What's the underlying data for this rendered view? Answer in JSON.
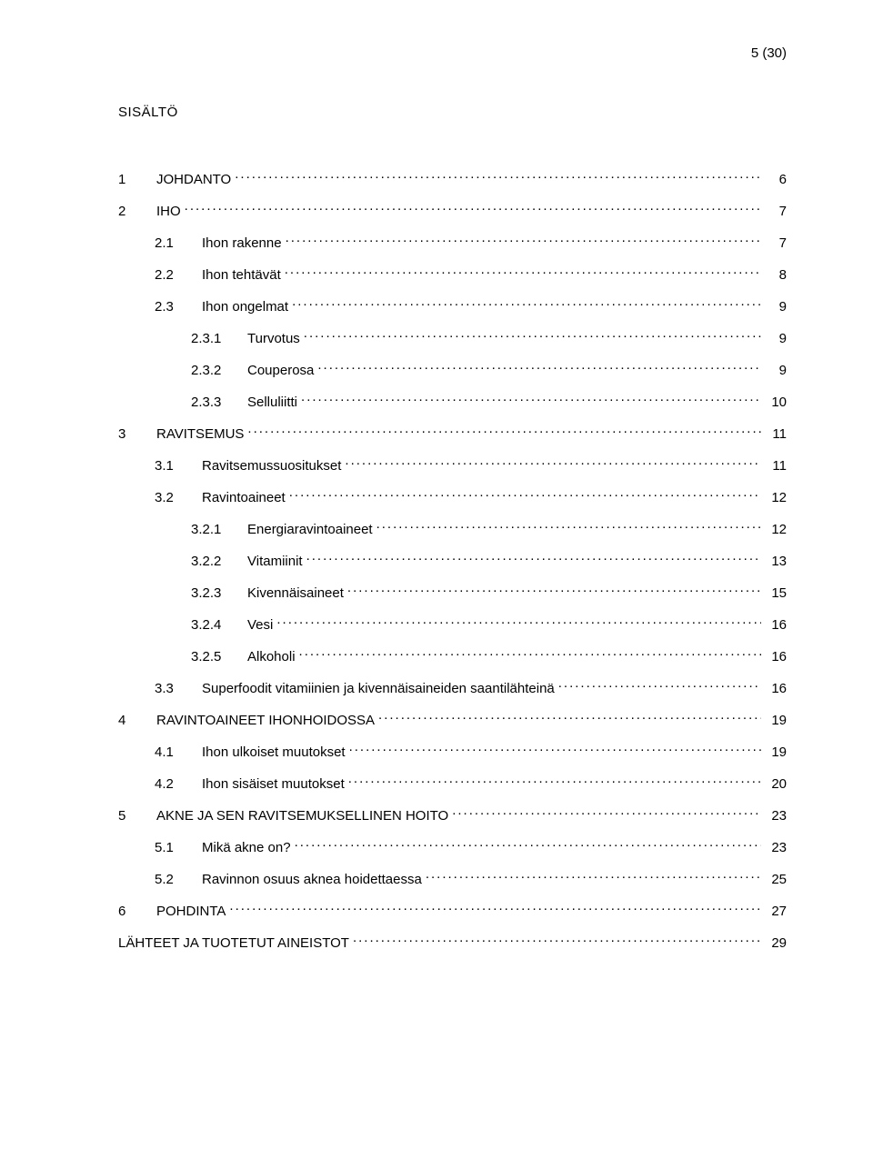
{
  "page_indicator": "5 (30)",
  "heading": "SISÄLTÖ",
  "background_color": "#ffffff",
  "text_color": "#000000",
  "font_family": "Verdana, Tahoma, Geneva, sans-serif",
  "body_font_size_pt": 11,
  "entries": [
    {
      "level": 0,
      "num": "1",
      "title": "JOHDANTO",
      "page": "6"
    },
    {
      "level": 0,
      "num": "2",
      "title": "IHO",
      "page": "7"
    },
    {
      "level": 1,
      "num": "2.1",
      "title": "Ihon rakenne",
      "page": "7"
    },
    {
      "level": 1,
      "num": "2.2",
      "title": "Ihon tehtävät",
      "page": "8"
    },
    {
      "level": 1,
      "num": "2.3",
      "title": "Ihon ongelmat",
      "page": "9"
    },
    {
      "level": 2,
      "num": "2.3.1",
      "title": "Turvotus",
      "page": "9"
    },
    {
      "level": 2,
      "num": "2.3.2",
      "title": "Couperosa",
      "page": "9"
    },
    {
      "level": 2,
      "num": "2.3.3",
      "title": "Selluliitti",
      "page": "10"
    },
    {
      "level": 0,
      "num": "3",
      "title": "RAVITSEMUS",
      "page": "11"
    },
    {
      "level": 1,
      "num": "3.1",
      "title": "Ravitsemussuositukset",
      "page": "11"
    },
    {
      "level": 1,
      "num": "3.2",
      "title": "Ravintoaineet",
      "page": "12"
    },
    {
      "level": 2,
      "num": "3.2.1",
      "title": "Energiaravintoaineet",
      "page": "12"
    },
    {
      "level": 2,
      "num": "3.2.2",
      "title": "Vitamiinit",
      "page": "13"
    },
    {
      "level": 2,
      "num": "3.2.3",
      "title": "Kivennäisaineet",
      "page": "15"
    },
    {
      "level": 2,
      "num": "3.2.4",
      "title": "Vesi",
      "page": "16"
    },
    {
      "level": 2,
      "num": "3.2.5",
      "title": "Alkoholi",
      "page": "16"
    },
    {
      "level": 1,
      "num": "3.3",
      "title": "Superfoodit vitamiinien ja kivennäisaineiden saantilähteinä",
      "page": "16"
    },
    {
      "level": 0,
      "num": "4",
      "title": "RAVINTOAINEET IHONHOIDOSSA",
      "page": "19"
    },
    {
      "level": 1,
      "num": "4.1",
      "title": "Ihon ulkoiset muutokset",
      "page": "19"
    },
    {
      "level": 1,
      "num": "4.2",
      "title": "Ihon sisäiset muutokset",
      "page": "20"
    },
    {
      "level": 0,
      "num": "5",
      "title": "AKNE JA SEN RAVITSEMUKSELLINEN HOITO",
      "page": "23"
    },
    {
      "level": 1,
      "num": "5.1",
      "title": "Mikä akne on?",
      "page": "23"
    },
    {
      "level": 1,
      "num": "5.2",
      "title": "Ravinnon osuus aknea hoidettaessa",
      "page": "25"
    },
    {
      "level": 0,
      "num": "6",
      "title": "POHDINTA",
      "page": "27"
    },
    {
      "level": 0,
      "num": "",
      "title": "LÄHTEET JA TUOTETUT AINEISTOT",
      "page": "29",
      "last": true
    }
  ]
}
